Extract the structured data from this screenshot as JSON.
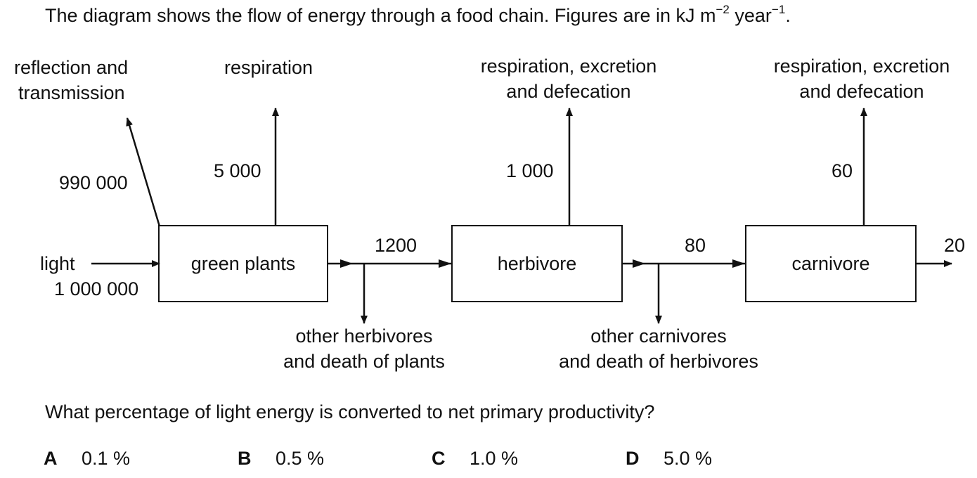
{
  "intro": {
    "text": "The diagram shows the flow of energy through a food chain. Figures are in kJ m",
    "exp1": "−2",
    "unit2": " year",
    "exp2": "−1",
    "end": "."
  },
  "boxes": {
    "plants": "green plants",
    "herbivore": "herbivore",
    "carnivore": "carnivore"
  },
  "labels": {
    "reflection_line1": "reflection and",
    "reflection_line2": "transmission",
    "respiration": "respiration",
    "herb_loss_line1": "respiration, excretion",
    "herb_loss_line2": "and defecation",
    "carn_loss_line1": "respiration, excretion",
    "carn_loss_line2": "and defecation",
    "light": "light",
    "other_herb_line1": "other herbivores",
    "other_herb_line2": "and death of plants",
    "other_carn_line1": "other carnivores",
    "other_carn_line2": "and death of herbivores"
  },
  "values": {
    "reflection": "990 000",
    "plant_respiration": "5 000",
    "herbivore_loss": "1 000",
    "carnivore_loss": "60",
    "light_input": "1 000 000",
    "plant_to_herbivore": "1200",
    "herbivore_to_carnivore": "80",
    "carnivore_out": "20"
  },
  "question": "What percentage of light energy is converted to net primary productivity?",
  "options": [
    {
      "letter": "A",
      "text": "0.1 %"
    },
    {
      "letter": "B",
      "text": "0.5 %"
    },
    {
      "letter": "C",
      "text": "1.0 %"
    },
    {
      "letter": "D",
      "text": "5.0 %"
    }
  ]
}
